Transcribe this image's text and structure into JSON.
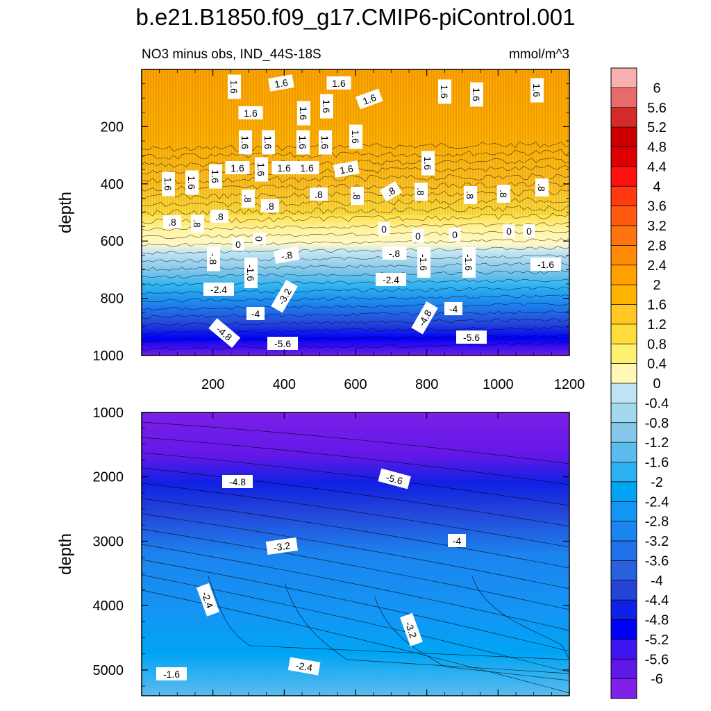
{
  "chart_data": {
    "type": "heatmap",
    "title": "b.e21.B1850.f09_g17.CMIP6-piControl.001",
    "subtitle_left": "NO3 minus obs, IND_44S-18S",
    "units": "mmol/m^3",
    "colorbar": {
      "labels": [
        "6",
        "5.6",
        "5.2",
        "4.8",
        "4.4",
        "4",
        "3.6",
        "3.2",
        "2.8",
        "2.4",
        "2",
        "1.6",
        "1.2",
        "0.8",
        "0.4",
        "0",
        "-0.4",
        "-0.8",
        "-1.2",
        "-1.6",
        "-2",
        "-2.4",
        "-2.8",
        "-3.2",
        "-3.6",
        "-4",
        "-4.4",
        "-4.8",
        "-5.2",
        "-5.6",
        "-6"
      ],
      "colors": [
        "#fbb0b0",
        "#e86a6a",
        "#d42a2a",
        "#cc0000",
        "#dd0000",
        "#ff1010",
        "#ff3a10",
        "#ff5a10",
        "#ff7410",
        "#ff8a08",
        "#ffa000",
        "#ffb400",
        "#ffc824",
        "#ffdc3c",
        "#fff070",
        "#fff8b4",
        "#c0e4f4",
        "#a4d8ee",
        "#84c8ea",
        "#5cbcee",
        "#2cb2f0",
        "#00a4f4",
        "#1495f4",
        "#1c84ee",
        "#2070e8",
        "#2860dc",
        "#2444d8",
        "#1020e4",
        "#0000f6",
        "#4014f0",
        "#6018e8",
        "#8020e8"
      ]
    },
    "panels": [
      {
        "name": "upper-ocean",
        "ylabel": "depth",
        "x_ticks": [
          "200",
          "400",
          "600",
          "800",
          "1000",
          "1200"
        ],
        "x_range": [
          0,
          1200
        ],
        "y_ticks": [
          "200",
          "400",
          "600",
          "800",
          "1000"
        ],
        "y_range": [
          0,
          1000
        ],
        "contour_labels": [
          "1.6",
          "1.6",
          "1.6",
          "1.6",
          "1.6",
          "1.6",
          "1.6",
          "1.6",
          "1.6",
          "1.6",
          "1.6",
          "1.6",
          "1.6",
          "1.6",
          "1.6",
          "1.6",
          "1.6",
          "1.6",
          "1.6",
          "1.6",
          "1.6",
          "1.6",
          "1.6",
          "1.6",
          ".8",
          ".8",
          ".8",
          ".8",
          ".8",
          ".8",
          ".8",
          ".8",
          ".8",
          ".8",
          ".8",
          ".8",
          "0",
          "0",
          "0",
          "0",
          "0",
          "0",
          "0",
          "-.8",
          "-.8",
          "-.8",
          "-1.6",
          "-1.6",
          "-1.6",
          "-1.6",
          "-2.4",
          "-2.4",
          "-3.2",
          "-4",
          "-4",
          "-4.8",
          "-4.8",
          "-5.6",
          "-5.6"
        ]
      },
      {
        "name": "deep-ocean",
        "ylabel": "depth",
        "y_ticks": [
          "1000",
          "2000",
          "3000",
          "4000",
          "5000"
        ],
        "y_range": [
          1000,
          5400
        ],
        "contour_labels": [
          "-4.8",
          "-5.6",
          "-3.2",
          "-4",
          "-2.4",
          "-3.2",
          "-2.4",
          "-1.6"
        ]
      }
    ]
  }
}
